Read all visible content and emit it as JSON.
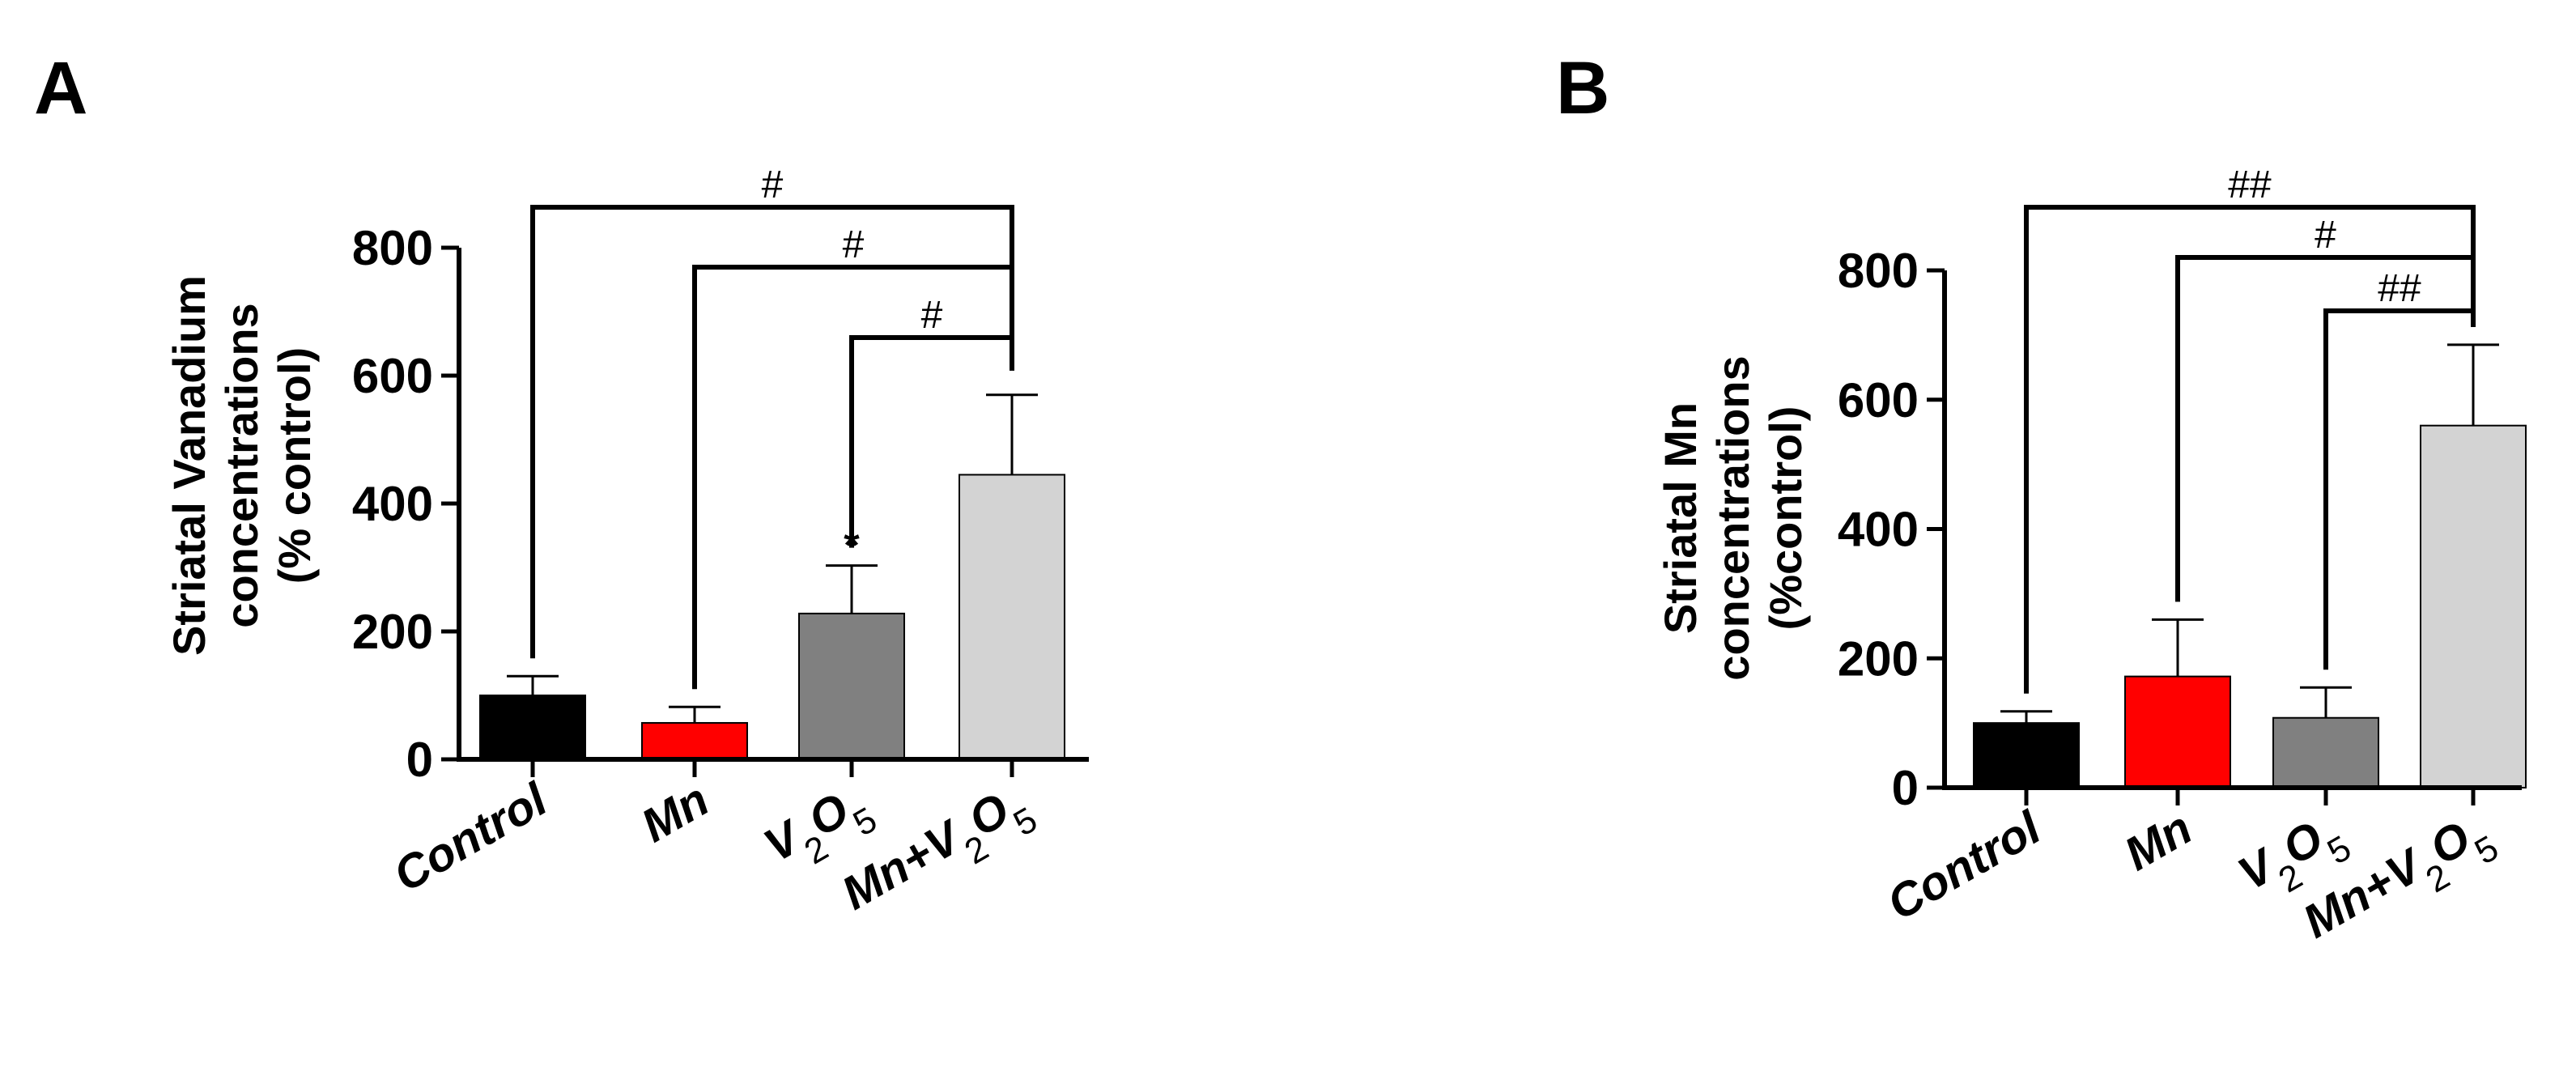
{
  "panels": [
    {
      "letter": "A",
      "ylabel_lines": [
        "Striatal Vanadium",
        "concentrations",
        "(% control)"
      ]
    },
    {
      "letter": "B",
      "ylabel_lines": [
        "Striatal Mn",
        "concentrations",
        "(%control)"
      ]
    }
  ],
  "chart_data": [
    {
      "type": "bar",
      "title": "",
      "categories": [
        "Control",
        "Mn",
        "V2O5",
        "Mn+V2O5"
      ],
      "values": [
        100,
        57,
        228,
        445
      ],
      "errors": [
        30,
        25,
        75,
        125
      ],
      "bar_colors": [
        "#000000",
        "#ff0000",
        "#808080",
        "#d3d3d3"
      ],
      "xlabel": "",
      "ylabel": "Striatal Vanadium concentrations (% control)",
      "ylim": [
        0,
        800
      ],
      "yticks": [
        0,
        200,
        400,
        600,
        800
      ],
      "grid": false,
      "annotations": [
        {
          "text": "*",
          "category": "V2O5"
        }
      ],
      "significance": [
        {
          "from": "Control",
          "to": "Mn+V2O5",
          "label": "#"
        },
        {
          "from": "Mn",
          "to": "Mn+V2O5",
          "label": "#"
        },
        {
          "from": "V2O5",
          "to": "Mn+V2O5",
          "label": "#"
        }
      ]
    },
    {
      "type": "bar",
      "title": "",
      "categories": [
        "Control",
        "Mn",
        "V2O5",
        "Mn+V2O5"
      ],
      "values": [
        100,
        172,
        108,
        560
      ],
      "errors": [
        18,
        88,
        47,
        125
      ],
      "bar_colors": [
        "#000000",
        "#ff0000",
        "#808080",
        "#d3d3d3"
      ],
      "xlabel": "",
      "ylabel": "Striatal Mn concentrations (%control)",
      "ylim": [
        0,
        800
      ],
      "yticks": [
        0,
        200,
        400,
        600,
        800
      ],
      "grid": false,
      "significance": [
        {
          "from": "Control",
          "to": "Mn+V2O5",
          "label": "##"
        },
        {
          "from": "Mn",
          "to": "Mn+V2O5",
          "label": "#"
        },
        {
          "from": "V2O5",
          "to": "Mn+V2O5",
          "label": "##"
        }
      ]
    }
  ]
}
